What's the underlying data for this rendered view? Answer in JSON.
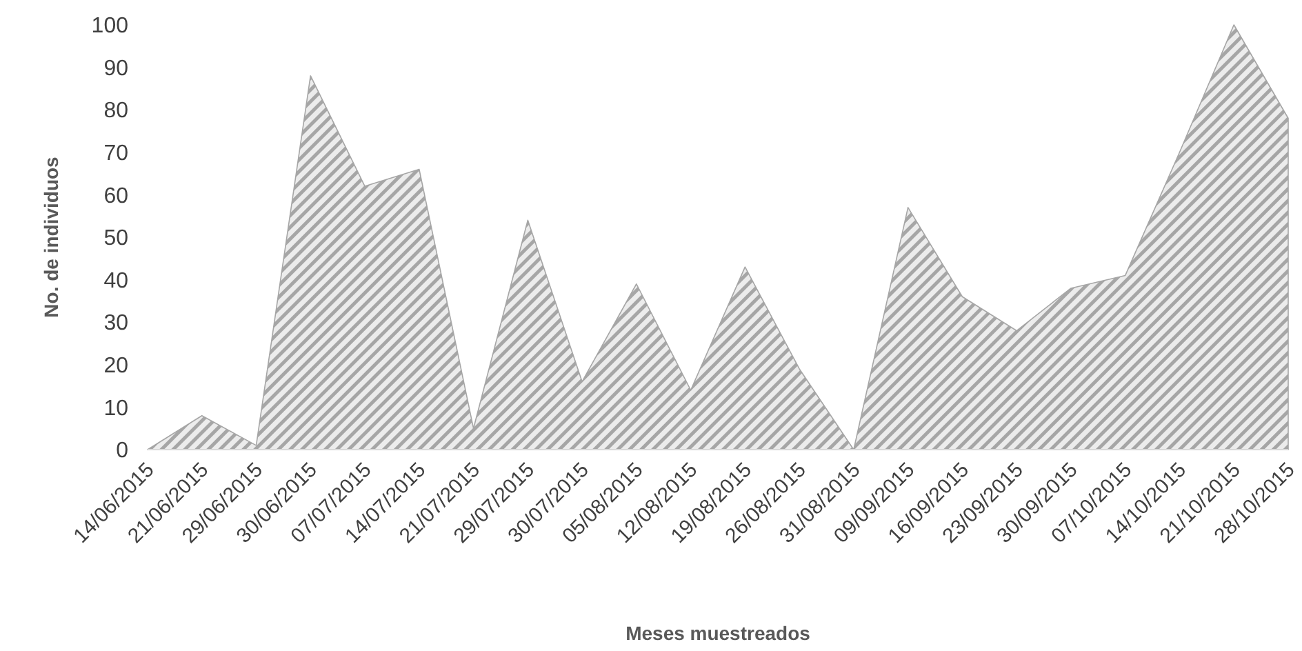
{
  "chart_data": {
    "type": "area",
    "xlabel": "Meses muestreados",
    "ylabel": "No. de individuos",
    "categories": [
      "14/06/2015",
      "21/06/2015",
      "29/06/2015",
      "30/06/2015",
      "07/07/2015",
      "14/07/2015",
      "21/07/2015",
      "29/07/2015",
      "30/07/2015",
      "05/08/2015",
      "12/08/2015",
      "19/08/2015",
      "26/08/2015",
      "31/08/2015",
      "09/09/2015",
      "16/09/2015",
      "23/09/2015",
      "30/09/2015",
      "07/10/2015",
      "14/10/2015",
      "21/10/2015",
      "28/10/2015"
    ],
    "series": [
      {
        "color": "#a6a6a6",
        "values": [
          0,
          8,
          1,
          88,
          62,
          66,
          5,
          54,
          16,
          39,
          14,
          43,
          19,
          0,
          57,
          36,
          28,
          38,
          41,
          70,
          100,
          78
        ]
      }
    ],
    "ylim": [
      0,
      100
    ],
    "yticks": [
      0,
      10,
      20,
      30,
      40,
      50,
      60,
      70,
      80,
      90,
      100
    ]
  }
}
